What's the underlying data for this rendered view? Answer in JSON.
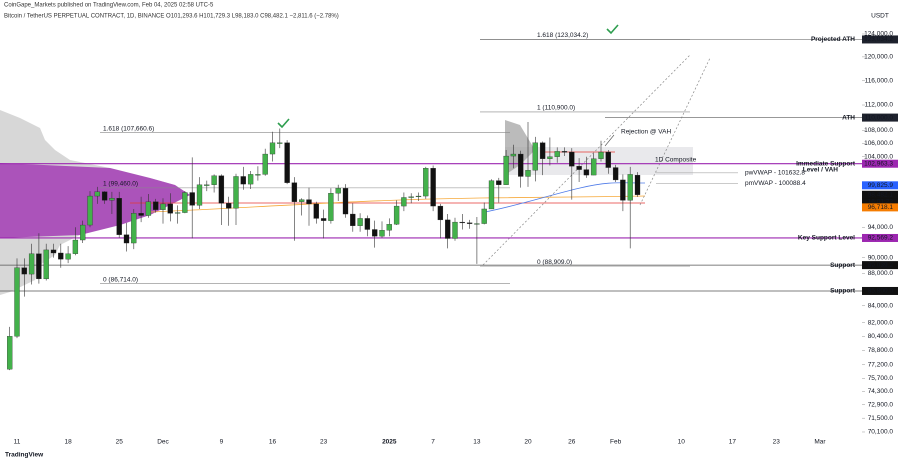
{
  "chart_data": {
    "type": "candlestick",
    "subtitle": "CoinGape_Markets published on TradingView.com, Feb 04, 2025 02:58 UTC-5",
    "title": "Bitcoin / TetherUS PERPETUAL CONTRACT, 1D, BINANCE  O101,293.6  H101,729.3  L98,183.0  C98,482.1  −2,811.6 (−2.78%)",
    "y_unit": "USDT",
    "brand": "TradingView",
    "log_scale": true,
    "grid": false,
    "up_color": "#43b14b",
    "down_color": "#111111",
    "categories": [
      null,
      "11",
      null,
      null,
      null,
      null,
      null,
      null,
      "18",
      null,
      null,
      null,
      null,
      null,
      null,
      "25",
      null,
      null,
      null,
      null,
      null,
      "Dec",
      null,
      null,
      null,
      null,
      null,
      null,
      null,
      "9",
      null,
      null,
      null,
      null,
      null,
      null,
      "16",
      null,
      null,
      null,
      null,
      null,
      null,
      "23",
      null,
      null,
      null,
      null,
      null,
      null,
      null,
      null,
      "2025",
      null,
      null,
      null,
      null,
      null,
      "7",
      null,
      null,
      null,
      null,
      null,
      "13",
      null,
      null,
      null,
      null,
      null,
      null,
      "20",
      null,
      null,
      null,
      null,
      null,
      "26",
      null,
      null,
      null,
      null,
      null,
      "Feb",
      null,
      null,
      null,
      null,
      null,
      null,
      null,
      null,
      "10",
      null,
      null,
      null,
      null,
      null,
      null,
      "17",
      null,
      null,
      null,
      null,
      null,
      "23",
      null,
      null,
      null,
      null,
      null,
      "Mar"
    ],
    "open": [
      76700,
      80400,
      88700,
      87900,
      90500,
      87300,
      91000,
      90600,
      89800,
      90500,
      92300,
      94300,
      98300,
      98900,
      97700,
      98000,
      93000,
      91900,
      95900,
      95600,
      97500,
      96400,
      97200,
      95900,
      96000,
      98800,
      97000,
      99900,
      99900,
      101200,
      97300,
      96600,
      101100,
      100000,
      101400,
      101400,
      104400,
      106100,
      106100,
      100200,
      97500,
      97800,
      97200,
      95200,
      94900,
      98700,
      99400,
      95800,
      94200,
      95200,
      93700,
      92800,
      93600,
      94400,
      96900,
      98100,
      98200,
      98300,
      102300,
      96900,
      95000,
      92500,
      94700,
      94600,
      94500,
      94500,
      96500,
      100500,
      99900,
      104100,
      104400,
      101100,
      102000,
      106100,
      103700,
      104000,
      104800,
      104700,
      102600,
      102100,
      101300,
      103700,
      104700,
      102400,
      100600,
      97700,
      101293.6,
      null,
      null,
      null,
      null,
      null,
      null,
      null,
      null,
      null,
      null,
      null,
      null,
      null,
      null,
      null,
      null,
      null,
      null,
      null,
      null,
      null,
      null,
      null,
      null,
      null
    ],
    "high": [
      81500,
      89900,
      89900,
      91800,
      93200,
      91800,
      91800,
      91800,
      91500,
      94000,
      94900,
      99000,
      99600,
      99000,
      98900,
      98900,
      94600,
      96500,
      98200,
      98600,
      97900,
      98000,
      98700,
      97000,
      99000,
      103900,
      101000,
      100500,
      101400,
      101400,
      98200,
      101500,
      102500,
      101900,
      102600,
      105200,
      107800,
      108300,
      106500,
      101000,
      98000,
      99500,
      97500,
      96400,
      99400,
      99900,
      100000,
      97300,
      95900,
      95600,
      94900,
      94800,
      95200,
      97700,
      98800,
      98700,
      98800,
      102500,
      102700,
      97200,
      95800,
      95300,
      95800,
      95000,
      95400,
      97400,
      100700,
      100900,
      105000,
      105800,
      104900,
      109300,
      107000,
      106300,
      106900,
      105400,
      105400,
      105300,
      103800,
      104000,
      104500,
      106400,
      105000,
      102800,
      101400,
      102500,
      101729.3,
      null,
      null,
      null,
      null,
      null,
      null,
      null,
      null,
      null,
      null,
      null,
      null,
      null,
      null,
      null,
      null,
      null,
      null,
      null,
      null,
      null,
      null,
      null,
      null,
      null
    ],
    "low": [
      76600,
      80200,
      85100,
      86600,
      86700,
      87100,
      90000,
      88700,
      89300,
      90300,
      91900,
      94000,
      97200,
      97200,
      95800,
      92600,
      90800,
      91100,
      94700,
      95300,
      96000,
      94500,
      94800,
      94500,
      95900,
      92500,
      96500,
      99000,
      98800,
      94300,
      94200,
      94300,
      99200,
      99300,
      100500,
      101200,
      103300,
      105300,
      100000,
      92200,
      95600,
      94200,
      94500,
      92500,
      94500,
      97600,
      95300,
      93400,
      93400,
      92800,
      91300,
      92600,
      92800,
      94300,
      96200,
      97300,
      97600,
      97900,
      96200,
      92500,
      91200,
      92200,
      93700,
      93800,
      89200,
      94400,
      96500,
      97400,
      99900,
      102300,
      99500,
      99600,
      100400,
      101300,
      102700,
      103100,
      104100,
      97800,
      100300,
      100900,
      101300,
      103300,
      101500,
      100300,
      96200,
      91200,
      98183,
      null,
      null,
      null,
      null,
      null,
      null,
      null,
      null,
      null,
      null,
      null,
      null,
      null,
      null,
      null,
      null,
      null,
      null,
      null,
      null,
      null,
      null,
      null,
      null,
      null
    ],
    "close": [
      80400,
      88700,
      87900,
      90500,
      87300,
      91000,
      90600,
      89800,
      90500,
      92300,
      94300,
      98300,
      98900,
      97700,
      98000,
      93000,
      91900,
      95900,
      95600,
      97500,
      96400,
      97200,
      95900,
      96000,
      98800,
      97000,
      99900,
      99900,
      101200,
      97300,
      96600,
      101100,
      100000,
      101400,
      101400,
      104400,
      106100,
      106100,
      100200,
      97500,
      97800,
      97200,
      95200,
      94900,
      98700,
      99400,
      95800,
      94200,
      95200,
      93700,
      92800,
      93600,
      94400,
      96900,
      98100,
      98200,
      98300,
      102300,
      96900,
      95000,
      92500,
      94700,
      94600,
      94500,
      94500,
      96500,
      100500,
      99900,
      104100,
      104400,
      101100,
      102000,
      106100,
      103700,
      104000,
      104800,
      104700,
      102600,
      102100,
      101300,
      103700,
      104700,
      102400,
      100600,
      97700,
      101400,
      98482.1,
      null,
      null,
      null,
      null,
      null,
      null,
      null,
      null,
      null,
      null,
      null,
      null,
      null,
      null,
      null,
      null,
      null,
      null,
      null,
      null,
      null,
      null,
      null,
      null,
      null
    ],
    "ylim": [
      69300,
      126150
    ],
    "yticks": [
      {
        "value": 124000,
        "label": "124,000.0"
      },
      {
        "value": 120000,
        "label": "120,000.0"
      },
      {
        "value": 116000,
        "label": "116,000.0"
      },
      {
        "value": 112000,
        "label": "112,000.0"
      },
      {
        "value": 108000,
        "label": "108,000.0"
      },
      {
        "value": 106000,
        "label": "106,000.0"
      },
      {
        "value": 104000,
        "label": "104,000.0"
      },
      {
        "value": 94000,
        "label": "94,000.0"
      },
      {
        "value": 90000,
        "label": "90,000.0"
      },
      {
        "value": 88000,
        "label": "88,000.0"
      },
      {
        "value": 84000,
        "label": "84,000.0"
      },
      {
        "value": 82000,
        "label": "82,000.0"
      },
      {
        "value": 80400,
        "label": "80,400.0"
      },
      {
        "value": 78800,
        "label": "78,800.0"
      },
      {
        "value": 77200,
        "label": "77,200.0"
      },
      {
        "value": 75700,
        "label": "75,700.0"
      },
      {
        "value": 74300,
        "label": "74,300.0"
      },
      {
        "value": 72900,
        "label": "72,900.0"
      },
      {
        "value": 71500,
        "label": "71,500.0"
      },
      {
        "value": 70100,
        "label": "70,100.0"
      }
    ],
    "levels": [
      {
        "name": "Projected ATH",
        "value": 123034.2,
        "label": "123,034.2",
        "color": "#2962ff",
        "line_color": "#777777",
        "flag_color": "#1e222d"
      },
      {
        "name": "ATH",
        "value": 110000,
        "label": "110,000.0",
        "color": "#2962ff",
        "line_color": "#777777",
        "flag_color": "#1e222d"
      },
      {
        "name": "Immediate Support",
        "value": 102963.3,
        "label": "102,963.3",
        "color": "#b02a37",
        "line_color": "#9c27b0",
        "flag_color": "#9c27b0"
      },
      {
        "name": "Key Support Level",
        "value": 92569.2,
        "label": "92,569.2",
        "color": "#b02a37",
        "line_color": "#9c27b0",
        "flag_color": "#9c27b0"
      },
      {
        "name": "Support",
        "value": 89039.2,
        "label": "89,039.2",
        "color": "#1b4d3e",
        "line_color": "#555555",
        "flag_color": "#111111"
      },
      {
        "name": "Support",
        "value": 85800,
        "label": "85,800.0",
        "color": "#1b4d3e",
        "line_color": "#555555",
        "flag_color": "#111111"
      }
    ],
    "fibs": [
      {
        "label": "1.618 (123,034.2)",
        "value": 123034.2
      },
      {
        "label": "1 (110,900.0)",
        "value": 110900
      },
      {
        "label": "0 (88,909.0)",
        "value": 88909
      },
      {
        "label": "1.618 (107,660.6)",
        "value": 107660.6
      },
      {
        "label": "1 (99,460.0)",
        "value": 99460
      },
      {
        "label": "0 (86,714.0)",
        "value": 86714
      }
    ],
    "vwaps": [
      {
        "label": "pwVWAP - 101632.8",
        "value": 101632.8
      },
      {
        "label": "pmVWAP - 100088.4",
        "value": 100088.4
      }
    ],
    "price_flags": [
      {
        "value": 99825.9,
        "label": "99,825.9",
        "color": "#2962ff"
      },
      {
        "value": 98482.1,
        "label": "98,482.1",
        "color": "#111111"
      },
      {
        "value": 96718.1,
        "label": "96,718.1",
        "color": "#f57c00"
      }
    ],
    "countdown": "16:01:22",
    "annotations": [
      "Level / VAH",
      "Rejection @ VAH",
      "1D Composite"
    ]
  }
}
